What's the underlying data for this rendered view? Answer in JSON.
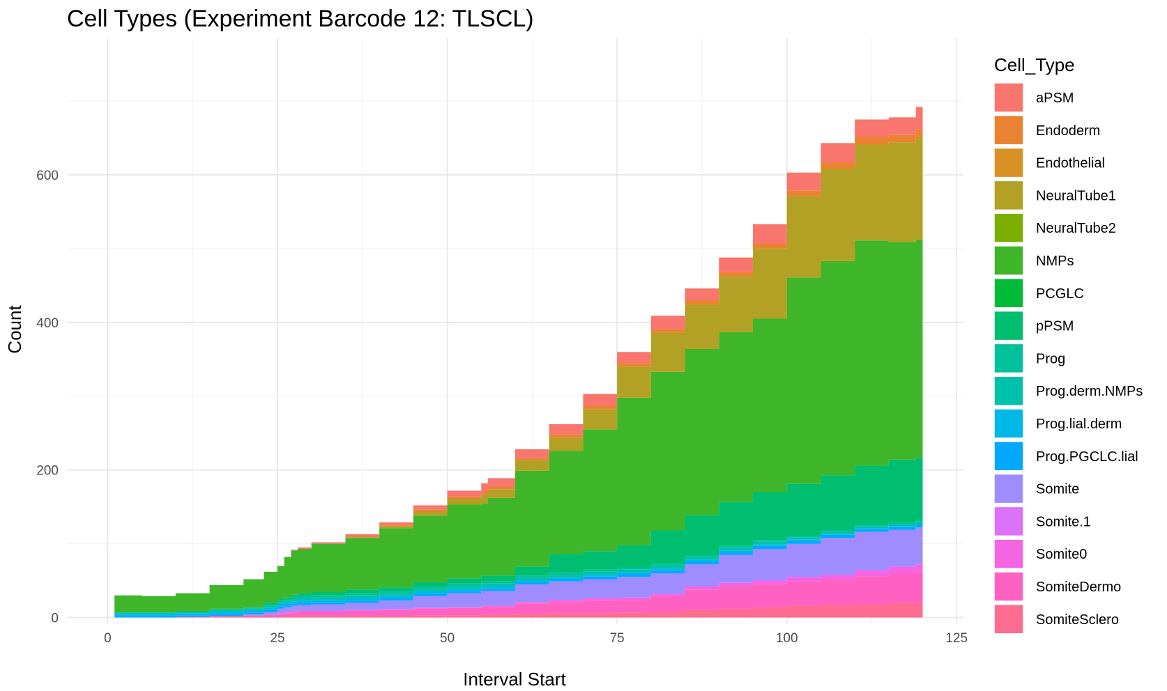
{
  "chart_data": {
    "type": "area",
    "stacked": true,
    "step": true,
    "title": "Cell Types (Experiment Barcode 12: TLSCL)",
    "xlabel": "Interval Start",
    "ylabel": "Count",
    "xlim": [
      -6,
      126
    ],
    "ylim": [
      -8,
      785
    ],
    "x_ticks": [
      0,
      25,
      50,
      75,
      100,
      125
    ],
    "y_ticks": [
      0,
      200,
      400,
      600
    ],
    "grid": true,
    "legend": {
      "title": "Cell_Type",
      "position": "right"
    },
    "x": [
      0,
      0.5,
      1,
      5,
      10,
      15,
      20,
      23,
      25,
      26,
      27,
      28,
      30,
      35,
      40,
      45,
      50,
      55,
      56,
      60,
      65,
      70,
      75,
      80,
      85,
      90,
      95,
      100,
      105,
      110,
      115,
      119,
      120
    ],
    "series": [
      {
        "name": "SomiteSclero",
        "color": "#FF6C91",
        "values": [
          0,
          0,
          0,
          0,
          0,
          1,
          1,
          1,
          1,
          2,
          2,
          2,
          2,
          2,
          2,
          3,
          3,
          4,
          4,
          5,
          6,
          6,
          7,
          8,
          10,
          12,
          14,
          16,
          17,
          18,
          20,
          20,
          20
        ]
      },
      {
        "name": "SomiteDermo",
        "color": "#FF61C3",
        "values": [
          0,
          0,
          0,
          0,
          1,
          1,
          2,
          3,
          4,
          4,
          5,
          6,
          6,
          7,
          8,
          9,
          10,
          10,
          10,
          14,
          15,
          17,
          17,
          21,
          28,
          30,
          31,
          33,
          34,
          38,
          40,
          42,
          42
        ]
      },
      {
        "name": "Somite0",
        "color": "#F564E3",
        "values": [
          0,
          0,
          0,
          0,
          0,
          0,
          0,
          0,
          1,
          1,
          1,
          1,
          1,
          1,
          1,
          1,
          1,
          2,
          2,
          2,
          3,
          3,
          3,
          3,
          4,
          5,
          5,
          6,
          7,
          8,
          9,
          10,
          10
        ]
      },
      {
        "name": "Somite.1",
        "color": "#DC71FA",
        "values": [
          0,
          0,
          0,
          0,
          0,
          0,
          0,
          0,
          0,
          0,
          0,
          0,
          0,
          0,
          0,
          0,
          0,
          0,
          0,
          0,
          0,
          0,
          0,
          0,
          0,
          0,
          0,
          0,
          0,
          0,
          0,
          0,
          0
        ]
      },
      {
        "name": "Somite",
        "color": "#9F8CFF",
        "values": [
          0,
          0,
          0,
          0,
          0,
          0,
          1,
          3,
          6,
          7,
          8,
          8,
          9,
          10,
          12,
          16,
          19,
          20,
          20,
          24,
          25,
          26,
          28,
          28,
          30,
          38,
          43,
          45,
          50,
          52,
          50,
          50,
          50
        ]
      },
      {
        "name": "Prog.PGCLC.lial",
        "color": "#00A9FF",
        "values": [
          0,
          0,
          2,
          2,
          2,
          3,
          3,
          3,
          3,
          3,
          3,
          3,
          3,
          3,
          3,
          3,
          3,
          3,
          3,
          3,
          3,
          4,
          4,
          4,
          4,
          4,
          4,
          4,
          4,
          4,
          4,
          4,
          4
        ]
      },
      {
        "name": "Prog.lial.derm",
        "color": "#00B8E7",
        "values": [
          0,
          0,
          3,
          3,
          3,
          3,
          3,
          3,
          3,
          3,
          3,
          3,
          3,
          3,
          3,
          3,
          3,
          3,
          3,
          2,
          2,
          2,
          2,
          2,
          2,
          2,
          2,
          2,
          1,
          1,
          1,
          1,
          1
        ]
      },
      {
        "name": "Prog.derm.NMPs",
        "color": "#00C1AA",
        "values": [
          0,
          0,
          2,
          2,
          2,
          2,
          2,
          3,
          3,
          3,
          3,
          3,
          3,
          4,
          4,
          4,
          4,
          4,
          4,
          4,
          4,
          4,
          4,
          4,
          4,
          4,
          4,
          3,
          3,
          3,
          3,
          3,
          3
        ]
      },
      {
        "name": "Prog",
        "color": "#00C19A",
        "values": [
          0,
          0,
          0,
          0,
          0,
          1,
          1,
          2,
          2,
          2,
          3,
          3,
          3,
          3,
          3,
          3,
          3,
          3,
          3,
          3,
          3,
          3,
          3,
          3,
          2,
          2,
          2,
          2,
          2,
          2,
          2,
          2,
          2
        ]
      },
      {
        "name": "pPSM",
        "color": "#00BE70",
        "values": [
          0,
          0,
          0,
          0,
          0,
          1,
          1,
          2,
          2,
          2,
          3,
          4,
          5,
          5,
          5,
          6,
          7,
          8,
          8,
          12,
          25,
          25,
          30,
          45,
          55,
          60,
          65,
          70,
          75,
          80,
          85,
          85,
          87
        ]
      },
      {
        "name": "PCGLC",
        "color": "#00BA38",
        "values": [
          0,
          0,
          0,
          0,
          0,
          0,
          0,
          0,
          0,
          0,
          0,
          0,
          0,
          0,
          0,
          0,
          0,
          0,
          0,
          0,
          0,
          0,
          0,
          0,
          0,
          0,
          0,
          0,
          0,
          0,
          0,
          0,
          0
        ]
      },
      {
        "name": "NMPs",
        "color": "#3FB62A",
        "values": [
          0,
          0,
          23,
          22,
          25,
          32,
          38,
          42,
          45,
          55,
          60,
          60,
          65,
          70,
          80,
          90,
          100,
          98,
          105,
          130,
          140,
          165,
          200,
          215,
          225,
          230,
          235,
          280,
          290,
          305,
          295,
          295,
          315
        ]
      },
      {
        "name": "NeuralTube2",
        "color": "#7CAE00",
        "values": [
          0,
          0,
          0,
          0,
          0,
          0,
          0,
          0,
          0,
          0,
          0,
          0,
          0,
          0,
          0,
          0,
          0,
          0,
          0,
          0,
          0,
          0,
          0,
          0,
          0,
          0,
          0,
          0,
          0,
          0,
          0,
          0,
          0
        ]
      },
      {
        "name": "NeuralTube1",
        "color": "#B2A124",
        "values": [
          0,
          0,
          0,
          0,
          0,
          0,
          0,
          0,
          0,
          0,
          0,
          0,
          0,
          1,
          3,
          6,
          8,
          12,
          12,
          14,
          18,
          27,
          42,
          53,
          60,
          75,
          95,
          110,
          125,
          130,
          135,
          140,
          160
        ]
      },
      {
        "name": "Endothelial",
        "color": "#D89125",
        "values": [
          0,
          0,
          0,
          0,
          0,
          0,
          0,
          0,
          0,
          0,
          0,
          0,
          0,
          0,
          0,
          0,
          0,
          0,
          0,
          0,
          0,
          0,
          0,
          0,
          0,
          0,
          0,
          0,
          0,
          0,
          0,
          0,
          0
        ]
      },
      {
        "name": "Endoderm",
        "color": "#EA8331",
        "values": [
          0,
          0,
          0,
          0,
          0,
          0,
          0,
          0,
          0,
          0,
          0,
          0,
          0,
          1,
          1,
          2,
          3,
          3,
          3,
          3,
          4,
          5,
          5,
          5,
          6,
          6,
          7,
          8,
          9,
          10,
          10,
          10,
          10
        ]
      },
      {
        "name": "aPSM",
        "color": "#F8766D",
        "values": [
          0,
          0,
          0,
          0,
          0,
          0,
          0,
          0,
          0,
          0,
          1,
          2,
          2,
          3,
          4,
          6,
          8,
          12,
          12,
          12,
          14,
          16,
          15,
          18,
          16,
          20,
          26,
          24,
          26,
          24,
          24,
          30,
          30
        ]
      }
    ]
  }
}
